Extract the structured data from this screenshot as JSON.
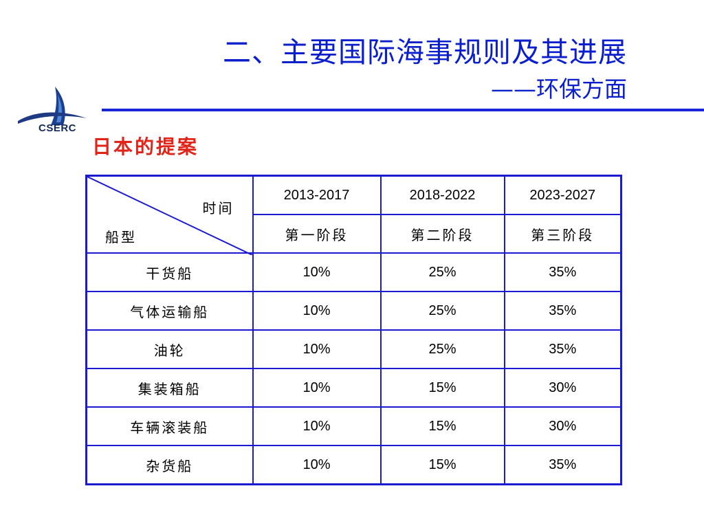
{
  "logo": {
    "text": "CSERC"
  },
  "header": {
    "title": "二、主要国际海事规则及其进展",
    "subtitle": "——环保方面"
  },
  "section": {
    "title": "日本的提案"
  },
  "table": {
    "corner_top": "时间",
    "corner_bottom": "船型",
    "periods": [
      "2013-2017",
      "2018-2022",
      "2023-2027"
    ],
    "phases": [
      "第一阶段",
      "第二阶段",
      "第三阶段"
    ],
    "rows": [
      {
        "ship": "干货船",
        "values": [
          "10%",
          "25%",
          "35%"
        ]
      },
      {
        "ship": "气体运输船",
        "values": [
          "10%",
          "25%",
          "35%"
        ]
      },
      {
        "ship": "油轮",
        "values": [
          "10%",
          "25%",
          "35%"
        ]
      },
      {
        "ship": "集装箱船",
        "values": [
          "10%",
          "15%",
          "30%"
        ]
      },
      {
        "ship": "车辆滚装船",
        "values": [
          "10%",
          "15%",
          "30%"
        ]
      },
      {
        "ship": "杂货船",
        "values": [
          "10%",
          "15%",
          "35%"
        ]
      }
    ]
  },
  "colors": {
    "title": "#0a1ecc",
    "rule": "#1726d9",
    "section_title": "#e0241a",
    "table_border": "#1a1ad0"
  }
}
